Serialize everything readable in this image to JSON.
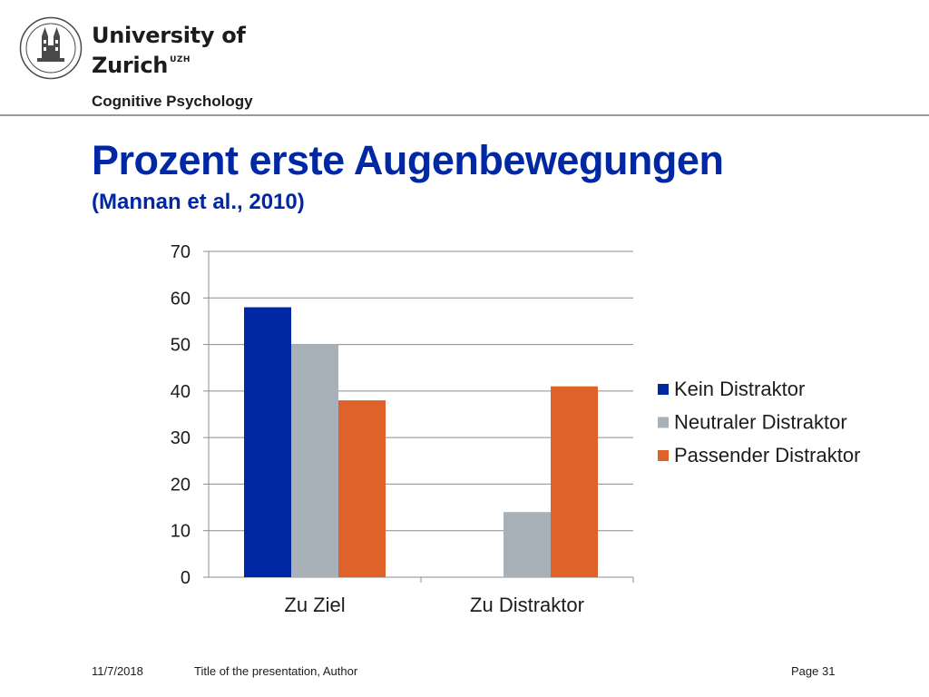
{
  "header": {
    "university_line1": "University of",
    "university_line2": "Zurich",
    "university_abbr": "UZH",
    "department": "Cognitive Psychology"
  },
  "slide": {
    "title": "Prozent erste Augenbewegungen",
    "subtitle": "(Mannan et al., 2010)"
  },
  "chart_data": {
    "type": "bar",
    "categories": [
      "Zu Ziel",
      "Zu Distraktor"
    ],
    "series": [
      {
        "name": "Kein Distraktor",
        "values": [
          58,
          0
        ],
        "color": "#0028a5"
      },
      {
        "name": "Neutraler Distraktor",
        "values": [
          50,
          14
        ],
        "color": "#a8b0b8"
      },
      {
        "name": "Passender Distraktor",
        "values": [
          38,
          41
        ],
        "color": "#de6229"
      }
    ],
    "ylim": [
      0,
      70
    ],
    "yticks": [
      0,
      10,
      20,
      30,
      40,
      50,
      60,
      70
    ],
    "grid": true,
    "legend": "right"
  },
  "footer": {
    "date": "11/7/2018",
    "presentation": "Title of the presentation, Author",
    "page": "Page 31"
  }
}
